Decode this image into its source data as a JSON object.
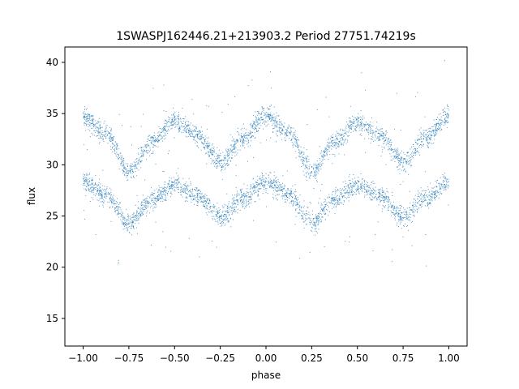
{
  "chart_data": {
    "type": "scatter",
    "title": "1SWASPJ162446.21+213903.2 Period 27751.74219s",
    "xlabel": "phase",
    "ylabel": "flux",
    "xlim": [
      -1.1,
      1.1
    ],
    "ylim": [
      12.3,
      41.5
    ],
    "xticks": [
      -1.0,
      -0.75,
      -0.5,
      -0.25,
      0.0,
      0.25,
      0.5,
      0.75,
      1.0
    ],
    "xtick_labels": [
      "−1.00",
      "−0.75",
      "−0.50",
      "−0.25",
      "0.00",
      "0.25",
      "0.50",
      "0.75",
      "1.00"
    ],
    "yticks": [
      15,
      20,
      25,
      30,
      35,
      40
    ],
    "ytick_labels": [
      "15",
      "20",
      "25",
      "30",
      "35",
      "40"
    ],
    "grid": false,
    "legend": "none",
    "marker_color": "#1f77b4",
    "series": [
      {
        "x": [
          -1.0,
          -0.875,
          -0.75,
          -0.625,
          -0.5,
          -0.375,
          -0.25,
          -0.125,
          0.0,
          0.125,
          0.25,
          0.375,
          0.5,
          0.625,
          0.75,
          0.875,
          1.0
        ],
        "values": [
          34.7,
          33.0,
          29.3,
          32.2,
          34.2,
          32.8,
          30.3,
          32.6,
          34.8,
          33.0,
          29.3,
          32.2,
          34.2,
          32.8,
          30.3,
          32.6,
          34.7
        ]
      },
      {
        "x": [
          -1.0,
          -0.875,
          -0.75,
          -0.625,
          -0.5,
          -0.375,
          -0.25,
          -0.125,
          0.0,
          0.125,
          0.25,
          0.375,
          0.5,
          0.625,
          0.75,
          0.875,
          1.0
        ],
        "values": [
          28.3,
          27.0,
          24.4,
          26.6,
          28.0,
          27.0,
          24.9,
          26.7,
          28.3,
          27.0,
          24.4,
          26.6,
          28.0,
          27.0,
          24.9,
          26.7,
          28.3
        ]
      }
    ]
  }
}
